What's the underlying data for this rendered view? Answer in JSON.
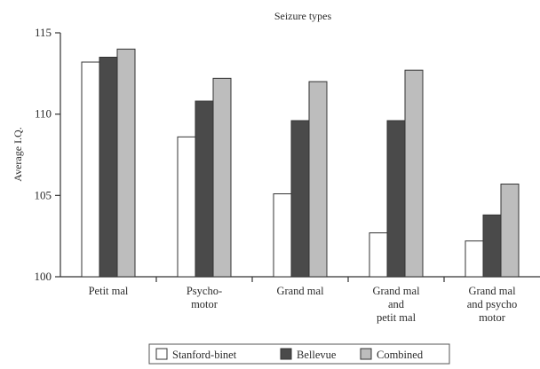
{
  "chart_data": {
    "type": "bar",
    "title": "Seizure types",
    "xlabel": "",
    "ylabel": "Average I.Q.",
    "ylim": [
      100,
      115
    ],
    "yticks": [
      100,
      105,
      110,
      115
    ],
    "grid": false,
    "legend_position": "bottom",
    "categories": [
      [
        "Petit mal"
      ],
      [
        "Psycho-",
        "motor"
      ],
      [
        "Grand mal"
      ],
      [
        "Grand mal",
        "and",
        "petit mal"
      ],
      [
        "Grand mal",
        "and psycho",
        "motor"
      ]
    ],
    "series": [
      {
        "name": "Stanford-binet",
        "color": "#ffffff",
        "values": [
          113.2,
          108.6,
          105.1,
          102.7,
          102.2
        ]
      },
      {
        "name": "Bellevue",
        "color": "#4a4a4a",
        "values": [
          113.5,
          110.8,
          109.6,
          109.6,
          103.8
        ]
      },
      {
        "name": "Combined",
        "color": "#bdbdbd",
        "values": [
          114.0,
          112.2,
          112.0,
          112.7,
          105.7
        ]
      }
    ]
  }
}
